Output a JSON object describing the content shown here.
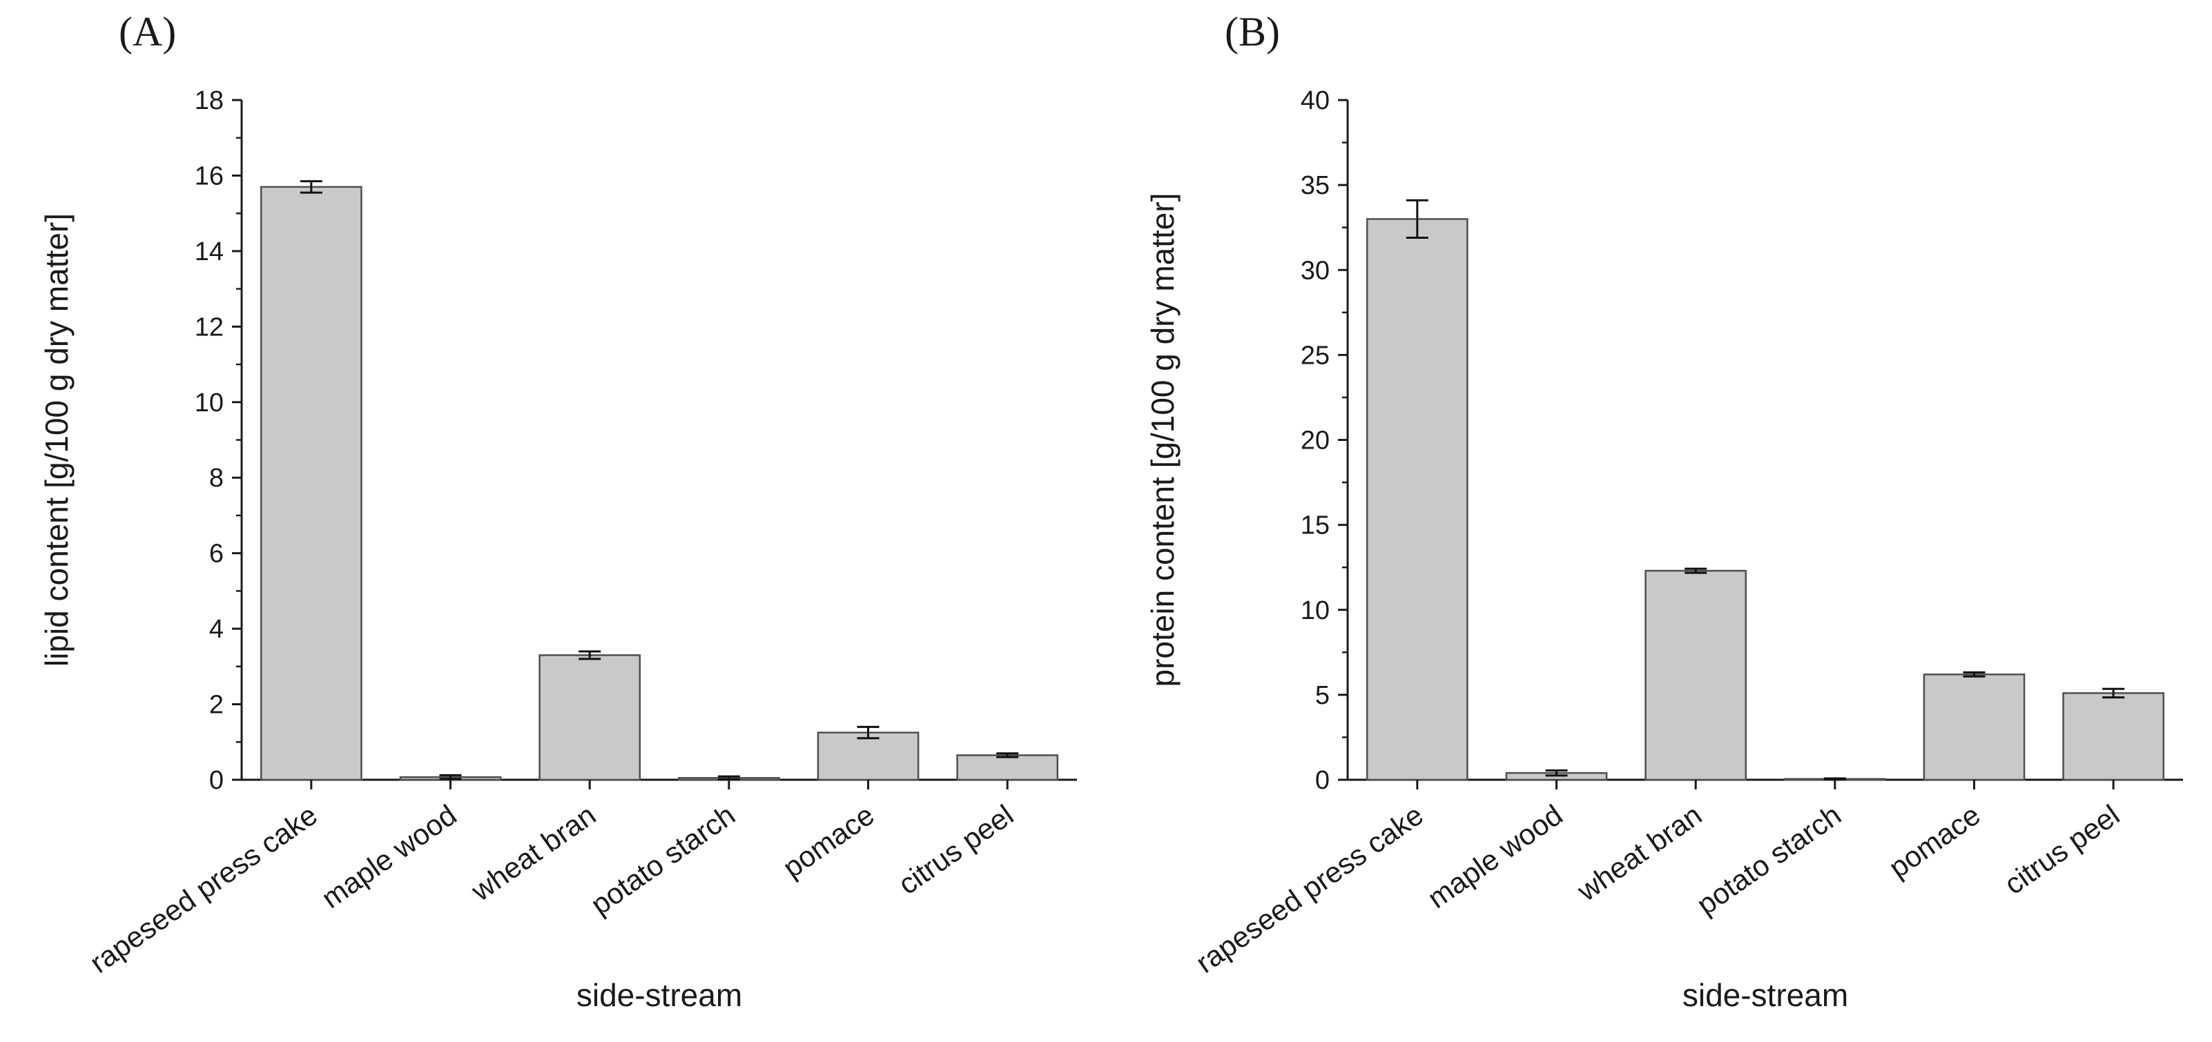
{
  "figure": {
    "background": "#ffffff"
  },
  "chart_data": [
    {
      "panel": "(A)",
      "type": "bar",
      "categories": [
        "rapeseed press cake",
        "maple wood",
        "wheat bran",
        "potato starch",
        "pomace",
        "citrus peel"
      ],
      "values": [
        15.7,
        0.07,
        3.3,
        0.05,
        1.25,
        0.65
      ],
      "errors": [
        0.15,
        0.05,
        0.1,
        0.04,
        0.15,
        0.05
      ],
      "title": "",
      "xlabel": "side-stream",
      "ylabel": "lipid content [g/100 g dry matter]",
      "ylim": [
        0,
        18
      ],
      "ytick_step": 2,
      "grid": false,
      "legend": "none",
      "bar_fill": "#c9c9c9",
      "bar_edge": "#4f4f4f",
      "axis_color": "#1a1a1a",
      "error_color": "#111111"
    },
    {
      "panel": "(B)",
      "type": "bar",
      "categories": [
        "rapeseed press cake",
        "maple wood",
        "wheat bran",
        "potato starch",
        "pomace",
        "citrus peel"
      ],
      "values": [
        33.0,
        0.4,
        12.3,
        0.05,
        6.2,
        5.1
      ],
      "errors": [
        1.1,
        0.15,
        0.12,
        0.03,
        0.12,
        0.25
      ],
      "title": "",
      "xlabel": "side-stream",
      "ylabel": "protein content [g/100 g dry matter]",
      "ylim": [
        0,
        40
      ],
      "ytick_step": 5,
      "grid": false,
      "legend": "none",
      "bar_fill": "#c9c9c9",
      "bar_edge": "#4f4f4f",
      "axis_color": "#1a1a1a",
      "error_color": "#111111"
    }
  ]
}
